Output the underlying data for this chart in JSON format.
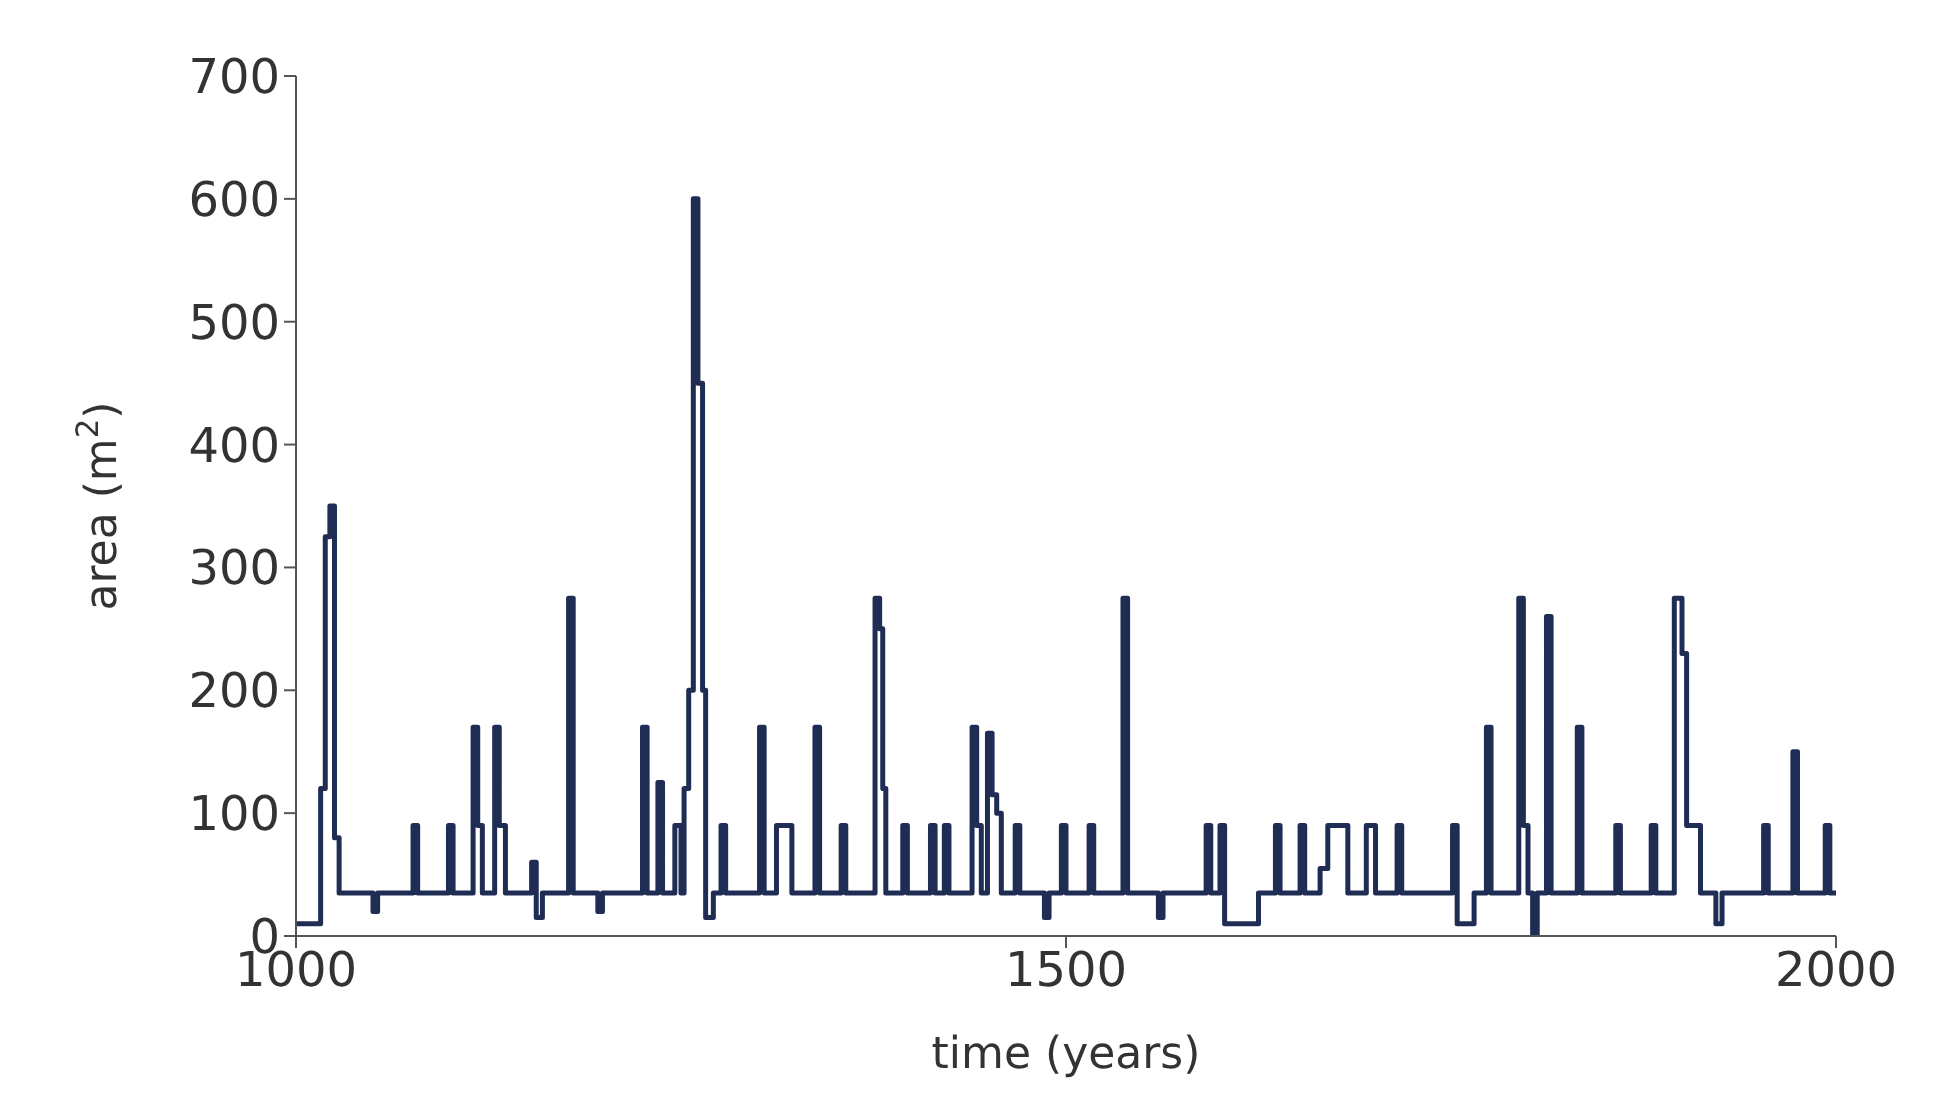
{
  "chart_data": {
    "type": "step",
    "xlabel": "time (years)",
    "ylabel": "area (m$^{2}$)",
    "xlim": [
      1000,
      2000
    ],
    "xticks": [
      1000,
      1500,
      2000
    ],
    "ylim": [
      0,
      700
    ],
    "yticks": [
      0,
      100,
      200,
      300,
      400,
      500,
      600,
      700
    ],
    "grid": false,
    "legend": false,
    "series": [
      {
        "color": "#1f2d55",
        "x": [
          1000,
          1016,
          1019,
          1022,
          1025,
          1028,
          1050,
          1053,
          1076,
          1079,
          1099,
          1102,
          1115,
          1118,
          1121,
          1129,
          1132,
          1136,
          1153,
          1156,
          1160,
          1177,
          1180,
          1196,
          1199,
          1225,
          1228,
          1235,
          1238,
          1246,
          1250,
          1252,
          1255,
          1258,
          1261,
          1264,
          1266,
          1271,
          1276,
          1279,
          1301,
          1304,
          1312,
          1322,
          1337,
          1340,
          1354,
          1357,
          1376,
          1379,
          1381,
          1383,
          1394,
          1397,
          1412,
          1415,
          1421,
          1424,
          1439,
          1442,
          1445,
          1449,
          1452,
          1455,
          1458,
          1467,
          1470,
          1486,
          1489,
          1497,
          1500,
          1515,
          1518,
          1537,
          1540,
          1560,
          1563,
          1591,
          1594,
          1600,
          1603,
          1625,
          1636,
          1639,
          1652,
          1655,
          1665,
          1670,
          1683,
          1695,
          1701,
          1715,
          1718,
          1751,
          1754,
          1765,
          1773,
          1776,
          1794,
          1797,
          1800,
          1803,
          1806,
          1812,
          1815,
          1832,
          1835,
          1857,
          1860,
          1880,
          1883,
          1895,
          1900,
          1903,
          1912,
          1922,
          1926,
          1953,
          1956,
          1972,
          1975,
          1993,
          1996,
          2000
        ],
        "values": [
          10,
          120,
          325,
          350,
          80,
          35,
          20,
          35,
          90,
          35,
          90,
          35,
          170,
          90,
          35,
          170,
          90,
          35,
          60,
          15,
          35,
          275,
          35,
          20,
          35,
          170,
          35,
          125,
          35,
          90,
          35,
          120,
          200,
          600,
          450,
          200,
          15,
          35,
          90,
          35,
          170,
          35,
          90,
          35,
          170,
          35,
          90,
          35,
          275,
          250,
          120,
          35,
          90,
          35,
          90,
          35,
          90,
          35,
          170,
          90,
          35,
          165,
          115,
          100,
          35,
          90,
          35,
          15,
          35,
          90,
          35,
          90,
          35,
          275,
          35,
          15,
          35,
          90,
          35,
          90,
          10,
          35,
          90,
          35,
          90,
          35,
          55,
          90,
          35,
          90,
          35,
          90,
          35,
          90,
          10,
          35,
          170,
          35,
          275,
          90,
          35,
          0,
          35,
          260,
          35,
          170,
          35,
          90,
          35,
          90,
          35,
          275,
          230,
          90,
          35,
          10,
          35,
          90,
          35,
          150,
          35,
          90,
          35,
          35
        ]
      }
    ]
  }
}
